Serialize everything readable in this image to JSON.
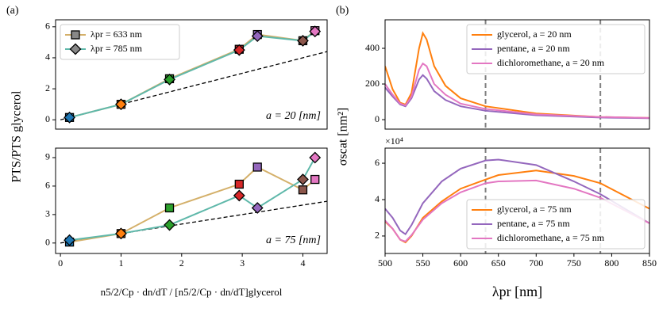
{
  "chart_data": [
    {
      "type": "line",
      "panel_label": "(a)",
      "ylabel": "PTS/PTS glycerol",
      "x": [
        0.15,
        1.0,
        1.8,
        2.95,
        3.25,
        4.0,
        4.2
      ],
      "point_colors": [
        "#1f77b4",
        "#ff7f0e",
        "#2ca02c",
        "#d62728",
        "#9467bd",
        "#8c564b",
        "#e377c2"
      ],
      "series": [
        {
          "name": "λpr = 633 nm",
          "color": "#d4b06a",
          "marker": "square",
          "values": [
            0.15,
            1.0,
            2.65,
            4.55,
            5.5,
            5.1,
            5.75
          ]
        },
        {
          "name": "λpr = 785 nm",
          "color": "#5fb8aa",
          "marker": "diamond",
          "values": [
            0.15,
            1.0,
            2.6,
            4.5,
            5.4,
            5.1,
            5.7
          ]
        }
      ],
      "reference_line": {
        "x": [
          0,
          4.4
        ],
        "y": [
          0,
          4.4
        ]
      },
      "annotation": "a = 20 [nm]",
      "xlim": [
        -0.08,
        4.4
      ],
      "ylim": [
        -0.6,
        6.45
      ],
      "yticks": [
        0,
        2,
        4,
        6
      ],
      "legend": "upper left"
    },
    {
      "type": "line",
      "xlabel": "n5/2/Cp · dn/dT / [n5/2/Cp · dn/dT]glycerol",
      "x": [
        0.15,
        1.0,
        1.8,
        2.95,
        3.25,
        4.0,
        4.2
      ],
      "point_colors": [
        "#1f77b4",
        "#ff7f0e",
        "#2ca02c",
        "#d62728",
        "#9467bd",
        "#8c564b",
        "#e377c2"
      ],
      "series": [
        {
          "name": "λpr = 633 nm",
          "color": "#d4b06a",
          "marker": "square",
          "values": [
            0.1,
            1.0,
            3.7,
            6.2,
            8.0,
            5.6,
            6.7
          ]
        },
        {
          "name": "λpr = 785 nm",
          "color": "#5fb8aa",
          "marker": "diamond",
          "values": [
            0.3,
            1.0,
            1.9,
            5.0,
            3.7,
            6.7,
            9.0
          ]
        }
      ],
      "reference_line": {
        "x": [
          0,
          4.4
        ],
        "y": [
          0,
          4.4
        ]
      },
      "annotation": "a = 75 [nm]",
      "xlim": [
        -0.08,
        4.4
      ],
      "ylim": [
        -1.1,
        10
      ],
      "xticks": [
        0,
        1,
        2,
        3,
        4
      ],
      "yticks": [
        0,
        3,
        6,
        9
      ]
    },
    {
      "type": "line",
      "panel_label": "(b)",
      "ylabel": "σscat [nm²]",
      "x": [
        500,
        510,
        520,
        527,
        535,
        545,
        550,
        555,
        565,
        580,
        600,
        633,
        700,
        785,
        850
      ],
      "series": [
        {
          "name": "glycerol, a = 20 nm",
          "color": "#ff7f0e",
          "values": [
            300,
            170,
            95,
            85,
            150,
            400,
            485,
            450,
            300,
            190,
            120,
            75,
            35,
            15,
            10
          ]
        },
        {
          "name": "pentane, a = 20 nm",
          "color": "#9467bd",
          "values": [
            180,
            130,
            85,
            75,
            120,
            225,
            250,
            230,
            160,
            110,
            75,
            50,
            25,
            12,
            8
          ]
        },
        {
          "name": "dichloromethane, a = 20 nm",
          "color": "#e377c2",
          "values": [
            200,
            140,
            90,
            80,
            130,
            280,
            315,
            300,
            200,
            140,
            90,
            60,
            30,
            15,
            10
          ]
        }
      ],
      "vlines": [
        633,
        785
      ],
      "xlim": [
        500,
        850
      ],
      "ylim": [
        -53,
        560
      ],
      "yticks": [
        0,
        200,
        400
      ],
      "legend": "upper right"
    },
    {
      "type": "line",
      "xlabel": "λpr [nm]",
      "scale_label": "×10⁴",
      "x": [
        500,
        510,
        520,
        527,
        535,
        550,
        575,
        600,
        633,
        650,
        700,
        750,
        785,
        850
      ],
      "series": [
        {
          "name": "glycerol, a = 75 nm",
          "color": "#ff7f0e",
          "values": [
            2.8,
            2.4,
            1.8,
            1.65,
            2.0,
            3.0,
            3.9,
            4.6,
            5.1,
            5.35,
            5.6,
            5.3,
            4.9,
            3.5
          ]
        },
        {
          "name": "pentane, a = 75 nm",
          "color": "#9467bd",
          "values": [
            3.5,
            3.0,
            2.3,
            2.1,
            2.6,
            3.8,
            5.0,
            5.7,
            6.15,
            6.2,
            5.9,
            5.0,
            4.3,
            2.7
          ]
        },
        {
          "name": "dichloromethane, a = 75 nm",
          "color": "#e377c2",
          "values": [
            2.85,
            2.4,
            1.8,
            1.7,
            2.05,
            2.9,
            3.8,
            4.4,
            4.9,
            5.0,
            5.05,
            4.6,
            4.1,
            2.7
          ]
        }
      ],
      "vlines": [
        633,
        785
      ],
      "xlim": [
        500,
        850
      ],
      "ylim": [
        1.04,
        6.83
      ],
      "xticks": [
        500,
        550,
        600,
        650,
        700,
        750,
        800,
        850
      ],
      "yticks": [
        2,
        4,
        6
      ],
      "legend": "lower right"
    }
  ]
}
